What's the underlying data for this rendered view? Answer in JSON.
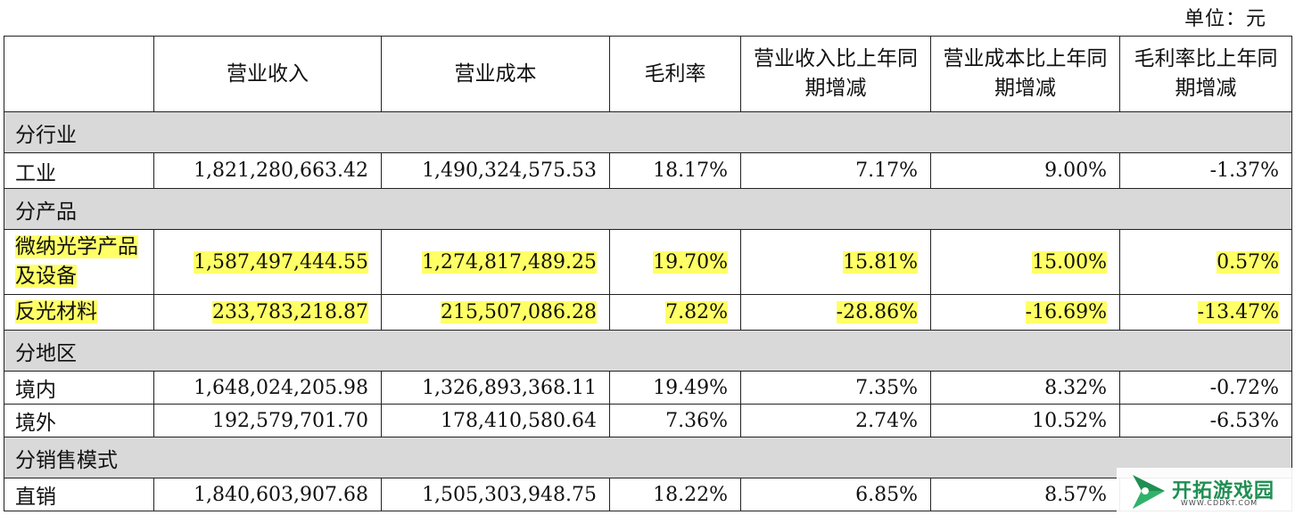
{
  "unit_label": "单位：元",
  "headers": {
    "c0": "",
    "c1": "营业收入",
    "c2": "营业成本",
    "c3": "毛利率",
    "c4": "营业收入比上年同期增减",
    "c5": "营业成本比上年同期增减",
    "c6": "毛利率比上年同期增减"
  },
  "sections": {
    "industry": "分行业",
    "product": "分产品",
    "region": "分地区",
    "sales_mode": "分销售模式"
  },
  "rows": {
    "industrial": {
      "label": "工业",
      "revenue": "1,821,280,663.42",
      "cost": "1,490,324,575.53",
      "margin": "18.17%",
      "rev_change": "7.17%",
      "cost_change": "9.00%",
      "margin_change": "-1.37%"
    },
    "micro_nano": {
      "label": "微纳光学产品及设备",
      "revenue": "1,587,497,444.55",
      "cost": "1,274,817,489.25",
      "margin": "19.70%",
      "rev_change": "15.81%",
      "cost_change": "15.00%",
      "margin_change": "0.57%"
    },
    "reflective": {
      "label": "反光材料",
      "revenue": "233,783,218.87",
      "cost": "215,507,086.28",
      "margin": "7.82%",
      "rev_change": "-28.86%",
      "cost_change": "-16.69%",
      "margin_change": "-13.47%"
    },
    "domestic": {
      "label": "境内",
      "revenue": "1,648,024,205.98",
      "cost": "1,326,893,368.11",
      "margin": "19.49%",
      "rev_change": "7.35%",
      "cost_change": "8.32%",
      "margin_change": "-0.72%"
    },
    "overseas": {
      "label": "境外",
      "revenue": "192,579,701.70",
      "cost": "178,410,580.64",
      "margin": "7.36%",
      "rev_change": "2.74%",
      "cost_change": "10.52%",
      "margin_change": "-6.53%"
    },
    "direct": {
      "label": "直销",
      "revenue": "1,840,603,907.68",
      "cost": "1,505,303,948.75",
      "margin": "18.22%",
      "rev_change": "6.85%",
      "cost_change": "8.57%"
    }
  },
  "watermark": {
    "name": "开拓游戏园",
    "url": "WWW.CDDKT.COM",
    "color": "#1f8f52"
  },
  "highlight_color": "#ffff66",
  "section_bg": "#d9d9d9"
}
